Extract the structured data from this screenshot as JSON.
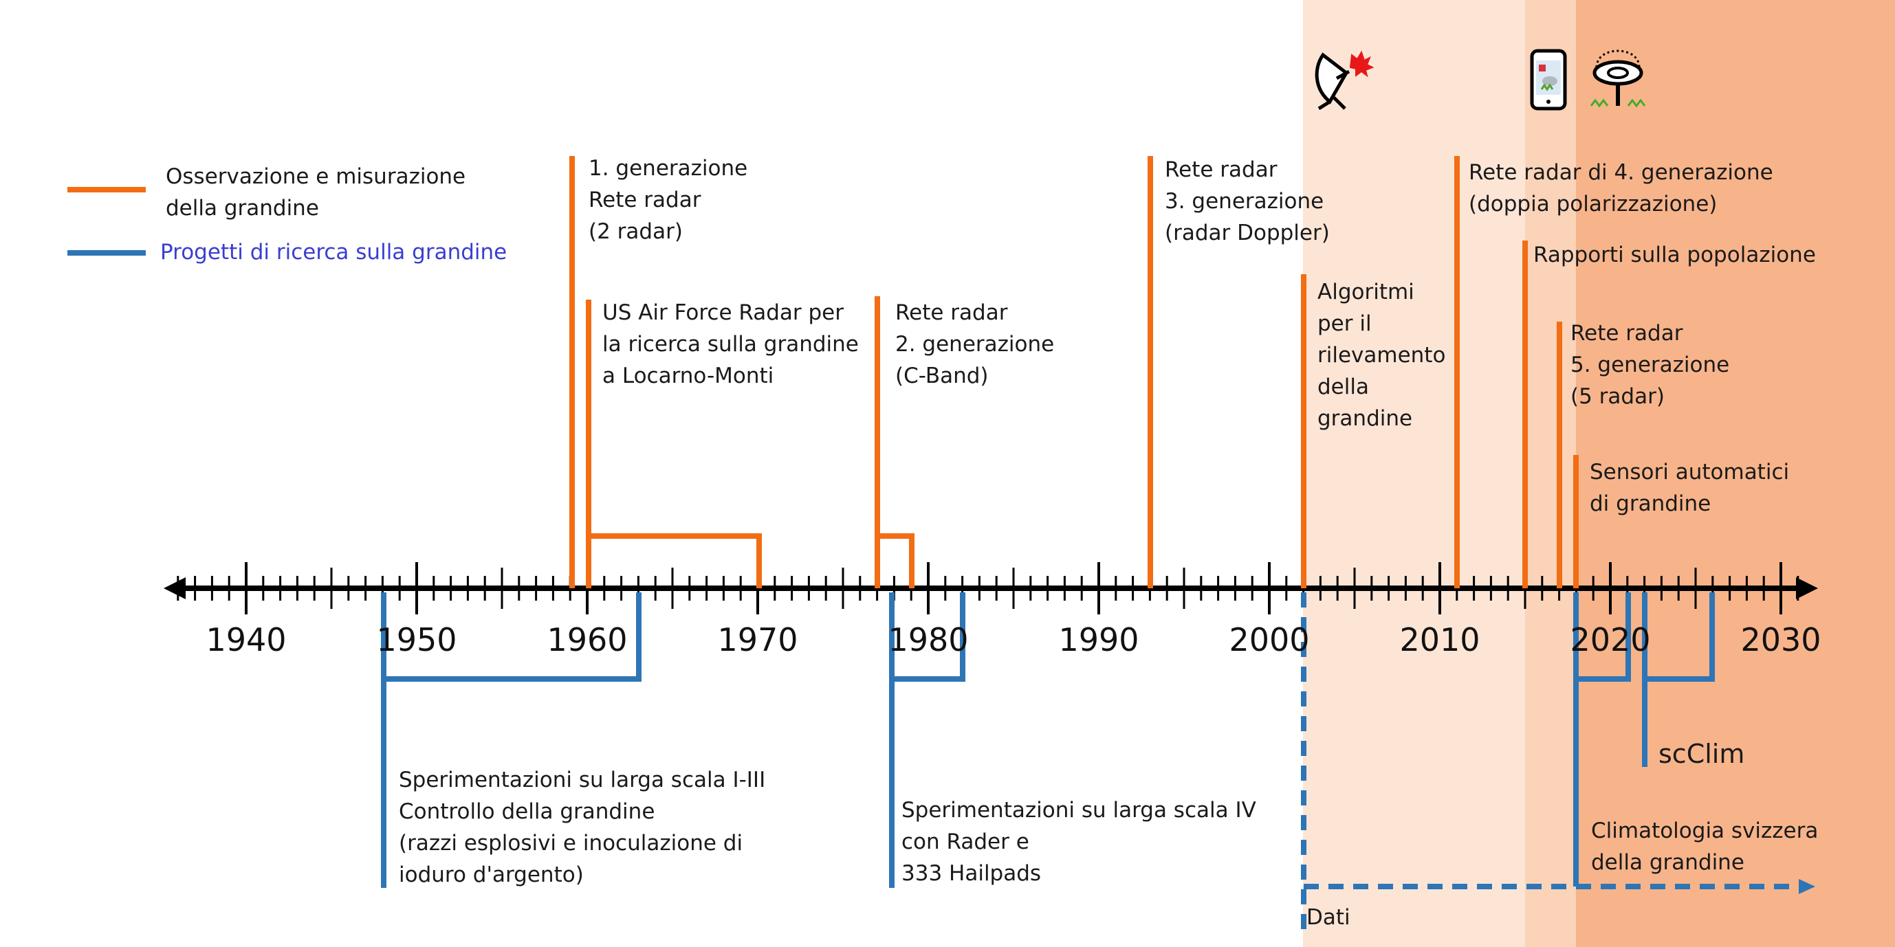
{
  "legend": {
    "observation": "Osservazione e misurazione\ndella grandine",
    "research": "Progetti di ricerca sulla grandine"
  },
  "colors": {
    "observation": "#f26d14",
    "research": "#2e75b6",
    "axis": "#000000",
    "band_light": "#fde5d6",
    "band_mid": "#fbd3b9",
    "band_dark": "#f7b48a"
  },
  "axis": {
    "start": 1935,
    "end": 2032,
    "labels": [
      "1940",
      "1950",
      "1960",
      "1970",
      "1980",
      "1990",
      "2000",
      "2010",
      "2020",
      "2030"
    ]
  },
  "events": {
    "gen1": "1. generazione\nRete radar\n(2 radar)",
    "usaf": "US Air Force Radar per\nla ricerca sulla grandine\na Locarno-Monti",
    "gen2": "Rete radar\n2. generazione\n(C-Band)",
    "gen3": "Rete radar\n3. generazione\n(radar Doppler)",
    "algo": "Algoritmi\nper il\nrilevamento\ndella\ngrandine",
    "gen4": "Rete radar di 4. generazione\n(doppia polarizzazione)",
    "reports": "Rapporti sulla popolazione",
    "gen5": "Rete radar\n5. generazione\n(5 radar)",
    "sensors": "Sensori automatici\ndi grandine"
  },
  "projects": {
    "large1": "Sperimentazioni su larga scala I-III\nControllo della grandine\n(razzi esplosivi e inoculazione di\nioduro d'argento)",
    "large4": "Sperimentazioni su larga scala IV\ncon Rader e\n333 Hailpads",
    "scclim": "scClim",
    "climatology": "Climatologia svizzera\ndella grandine",
    "data": "Dati"
  },
  "icons": [
    "radar-dish-icon",
    "smartphone-icon",
    "hail-sensor-icon"
  ]
}
